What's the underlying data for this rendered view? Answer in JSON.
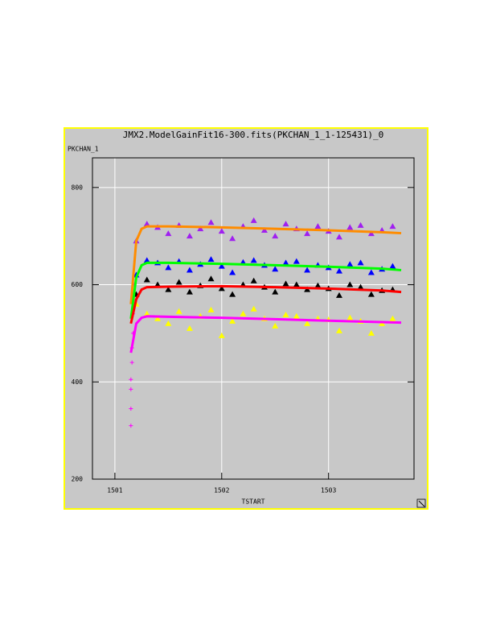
{
  "chart_data": {
    "type": "scatter",
    "title": "JMX2.ModelGainFit16-300.fits(PKCHAN_1_1-125431)_0",
    "x_label": "TSTART",
    "y_label": "PKCHAN_1",
    "xlim": [
      1500.79,
      1503.8
    ],
    "ylim": [
      200,
      861
    ],
    "xticks": [
      1501,
      1502,
      1503
    ],
    "yticks": [
      200,
      400,
      600,
      800
    ],
    "grid": true,
    "series": [
      {
        "marker": "triangle",
        "color": "#a020f0",
        "x": [
          1501.2,
          1501.3,
          1501.4,
          1501.5,
          1501.6,
          1501.7,
          1501.8,
          1501.9,
          1502.0,
          1502.1,
          1502.2,
          1502.3,
          1502.4,
          1502.5,
          1502.6,
          1502.7,
          1502.8,
          1502.9,
          1503.0,
          1503.1,
          1503.2,
          1503.3,
          1503.4,
          1503.5,
          1503.6
        ],
        "values": [
          690,
          725,
          718,
          705,
          722,
          700,
          715,
          728,
          710,
          695,
          720,
          732,
          712,
          700,
          725,
          715,
          705,
          720,
          710,
          698,
          718,
          722,
          705,
          712,
          720
        ]
      },
      {
        "marker": "triangle",
        "color": "#0000ff",
        "x": [
          1501.2,
          1501.3,
          1501.4,
          1501.5,
          1501.6,
          1501.7,
          1501.8,
          1501.9,
          1502.0,
          1502.1,
          1502.2,
          1502.3,
          1502.4,
          1502.5,
          1502.6,
          1502.7,
          1502.8,
          1502.9,
          1503.0,
          1503.1,
          1503.2,
          1503.3,
          1503.4,
          1503.5,
          1503.6
        ],
        "values": [
          620,
          650,
          645,
          635,
          648,
          630,
          642,
          652,
          638,
          625,
          646,
          650,
          640,
          632,
          645,
          648,
          630,
          640,
          635,
          628,
          642,
          645,
          625,
          632,
          638
        ]
      },
      {
        "marker": "triangle",
        "color": "#000000",
        "x": [
          1501.2,
          1501.3,
          1501.4,
          1501.5,
          1501.6,
          1501.7,
          1501.8,
          1501.9,
          1502.0,
          1502.1,
          1502.2,
          1502.3,
          1502.4,
          1502.5,
          1502.6,
          1502.7,
          1502.8,
          1502.9,
          1503.0,
          1503.1,
          1503.2,
          1503.3,
          1503.4,
          1503.5,
          1503.6
        ],
        "values": [
          580,
          610,
          600,
          590,
          605,
          585,
          598,
          612,
          592,
          580,
          600,
          608,
          595,
          585,
          602,
          600,
          590,
          598,
          592,
          578,
          600,
          595,
          580,
          588,
          590
        ]
      },
      {
        "marker": "triangle",
        "color": "#ffff00",
        "x": [
          1501.2,
          1501.3,
          1501.4,
          1501.5,
          1501.6,
          1501.7,
          1501.8,
          1501.9,
          1502.0,
          1502.1,
          1502.2,
          1502.3,
          1502.4,
          1502.5,
          1502.6,
          1502.7,
          1502.8,
          1502.9,
          1503.0,
          1503.1,
          1503.2,
          1503.3,
          1503.4,
          1503.5,
          1503.6
        ],
        "values": [
          560,
          540,
          530,
          520,
          545,
          510,
          535,
          548,
          495,
          525,
          540,
          550,
          530,
          515,
          538,
          535,
          520,
          530,
          528,
          505,
          532,
          525,
          500,
          520,
          530
        ]
      },
      {
        "marker": "cross",
        "color": "#ff00ff",
        "x": [
          1501.15,
          1501.15,
          1501.15,
          1501.15,
          1501.16,
          1501.16,
          1501.17,
          1501.17,
          1501.18,
          1501.18
        ],
        "values": [
          310,
          345,
          385,
          405,
          440,
          470,
          500,
          540,
          570,
          600
        ]
      },
      {
        "marker": "line",
        "color": "#ff8c00",
        "x": [
          1501.15,
          1501.2,
          1501.25,
          1501.3,
          1501.5,
          1502,
          1502.5,
          1503,
          1503.5,
          1503.68
        ],
        "values": [
          560,
          690,
          715,
          720,
          720,
          718,
          715,
          712,
          708,
          706
        ]
      },
      {
        "marker": "line",
        "color": "#00ff00",
        "x": [
          1501.15,
          1501.2,
          1501.25,
          1501.3,
          1501.5,
          1502,
          1502.5,
          1503,
          1503.5,
          1503.68
        ],
        "values": [
          530,
          615,
          640,
          645,
          645,
          643,
          640,
          637,
          633,
          630
        ]
      },
      {
        "marker": "line",
        "color": "#ff0000",
        "x": [
          1501.15,
          1501.2,
          1501.25,
          1501.3,
          1501.5,
          1502,
          1502.5,
          1503,
          1503.5,
          1503.68
        ],
        "values": [
          520,
          570,
          590,
          595,
          596,
          597,
          595,
          592,
          588,
          585
        ]
      },
      {
        "marker": "line",
        "color": "#ff00ff",
        "x": [
          1501.15,
          1501.2,
          1501.25,
          1501.3,
          1501.5,
          1502,
          1502.5,
          1503,
          1503.5,
          1503.68
        ],
        "values": [
          460,
          520,
          532,
          535,
          534,
          532,
          529,
          526,
          523,
          522
        ]
      }
    ]
  }
}
